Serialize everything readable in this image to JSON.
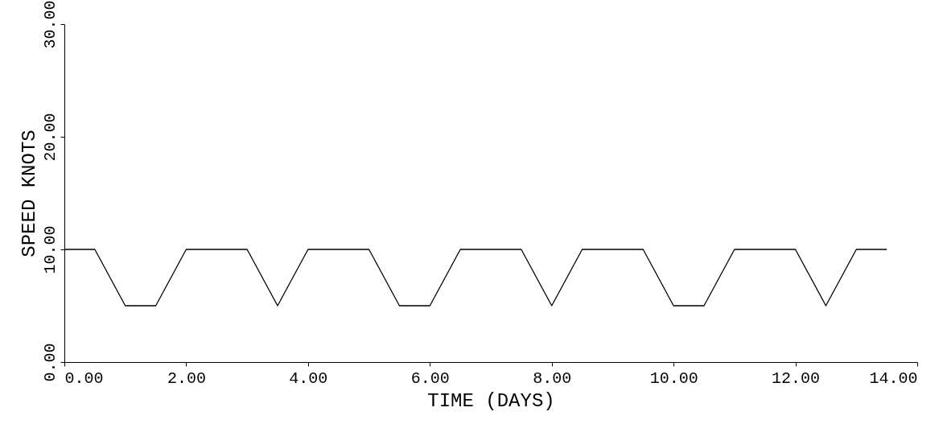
{
  "chart_data": {
    "type": "line",
    "xlabel": "TIME (DAYS)",
    "ylabel": "SPEED KNOTS",
    "x": [
      0,
      0.5,
      1.0,
      1.5,
      2.0,
      3.0,
      3.5,
      4.0,
      5.0,
      5.5,
      6.0,
      6.5,
      7.5,
      8.0,
      8.5,
      9.5,
      10.0,
      10.5,
      11.0,
      12.0,
      12.5,
      13.0,
      13.5
    ],
    "series": [
      {
        "color": "#000000",
        "values": [
          10,
          10,
          5,
          5,
          10,
          10,
          5,
          10,
          10,
          5,
          5,
          10,
          10,
          5,
          10,
          10,
          5,
          5,
          10,
          10,
          5,
          10,
          10
        ]
      }
    ],
    "xlim": [
      0,
      14
    ],
    "ylim": [
      0,
      30
    ],
    "xticks": [
      {
        "value": 0,
        "label": "0.00"
      },
      {
        "value": 2,
        "label": "2.00"
      },
      {
        "value": 4,
        "label": "4.00"
      },
      {
        "value": 6,
        "label": "6.00"
      },
      {
        "value": 8,
        "label": "8.00"
      },
      {
        "value": 10,
        "label": "10.00"
      },
      {
        "value": 12,
        "label": "12.00"
      },
      {
        "value": 14,
        "label": "14.00"
      }
    ],
    "yticks": [
      {
        "value": 0,
        "label": "0.00"
      },
      {
        "value": 10,
        "label": "10.00"
      },
      {
        "value": 20,
        "label": "20.00"
      },
      {
        "value": 30,
        "label": "30.00"
      }
    ],
    "grid": false,
    "marker": "none",
    "line_style": "solid"
  }
}
